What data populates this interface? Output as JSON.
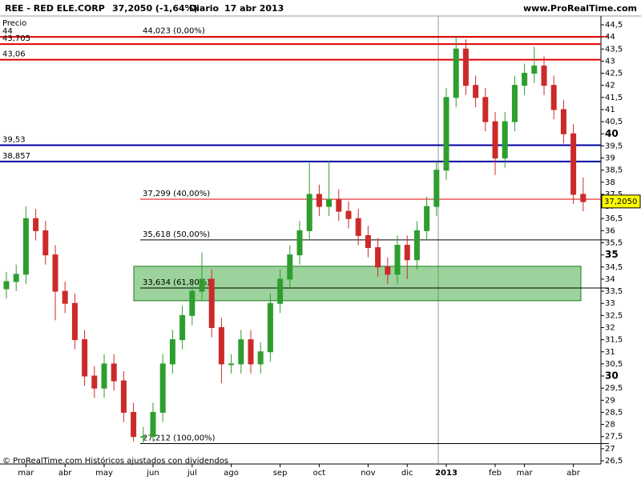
{
  "chart_data": {
    "type": "candlestick",
    "title": "REE - RED ELE.CORP",
    "last_quote": "37,2050 (-1,64%)",
    "period": "Diario",
    "date": "17 abr 2013",
    "site": "www.ProRealTime.com",
    "y_label": "Precio",
    "footer": "© ProRealTime.com Históricos ajustados con dividendos",
    "categories": [
      null,
      null,
      "mar",
      null,
      null,
      null,
      "abr",
      null,
      null,
      null,
      "may",
      null,
      null,
      null,
      null,
      "jun",
      null,
      null,
      null,
      "jul",
      null,
      null,
      null,
      "ago",
      null,
      null,
      null,
      null,
      "sep",
      null,
      null,
      null,
      "oct",
      null,
      null,
      null,
      null,
      "nov",
      null,
      null,
      null,
      "dic",
      null,
      null,
      null,
      "2013",
      null,
      null,
      null,
      null,
      "feb",
      null,
      null,
      "mar",
      null,
      null,
      null,
      null,
      "abr",
      null
    ],
    "open": [
      33.6,
      33.9,
      34.2,
      36.5,
      36.0,
      35.0,
      33.5,
      33.0,
      31.5,
      30.0,
      29.5,
      30.5,
      29.8,
      28.5,
      27.5,
      27.5,
      28.5,
      30.5,
      31.5,
      32.5,
      33.5,
      34.0,
      32.0,
      30.5,
      30.5,
      31.5,
      30.5,
      31.0,
      33.0,
      34.0,
      35.0,
      36.0,
      37.5,
      37.0,
      37.3,
      36.8,
      36.5,
      35.8,
      35.3,
      34.5,
      34.2,
      35.4,
      34.8,
      36.0,
      37.0,
      38.5,
      41.5,
      43.5,
      42.0,
      41.5,
      40.5,
      39.0,
      40.5,
      42.0,
      42.5,
      42.8,
      42.0,
      41.0,
      40.0,
      37.5
    ],
    "high": [
      34.3,
      34.6,
      37.0,
      36.9,
      36.4,
      35.4,
      33.9,
      33.4,
      31.9,
      30.4,
      30.9,
      30.9,
      30.2,
      28.9,
      27.9,
      28.9,
      30.9,
      31.9,
      32.9,
      33.9,
      35.1,
      34.4,
      32.4,
      30.9,
      31.9,
      31.9,
      31.4,
      33.4,
      34.4,
      35.4,
      36.4,
      38.8,
      37.9,
      38.9,
      37.7,
      37.2,
      36.9,
      36.2,
      35.7,
      34.9,
      35.8,
      35.8,
      36.4,
      37.4,
      38.9,
      41.9,
      44.0,
      43.9,
      42.4,
      41.9,
      40.9,
      40.9,
      42.4,
      42.9,
      43.6,
      43.2,
      42.4,
      41.4,
      40.4,
      38.2
    ],
    "low": [
      33.2,
      33.5,
      33.8,
      35.6,
      34.6,
      32.3,
      32.6,
      31.1,
      29.6,
      29.1,
      29.1,
      29.4,
      28.1,
      27.3,
      27.2,
      27.3,
      28.1,
      30.1,
      31.1,
      32.1,
      33.1,
      31.6,
      29.7,
      30.1,
      30.1,
      30.1,
      30.1,
      30.6,
      32.6,
      33.6,
      34.6,
      35.6,
      36.6,
      36.6,
      36.4,
      36.1,
      35.4,
      34.9,
      34.1,
      33.8,
      33.8,
      34.0,
      34.4,
      35.6,
      36.6,
      38.1,
      41.1,
      41.6,
      41.1,
      40.1,
      38.3,
      38.6,
      40.1,
      41.6,
      42.1,
      41.6,
      40.6,
      39.6,
      37.1,
      36.8
    ],
    "close": [
      33.9,
      34.2,
      36.5,
      36.0,
      35.0,
      33.5,
      33.0,
      31.5,
      30.0,
      29.5,
      30.5,
      29.8,
      28.5,
      27.5,
      27.5,
      28.5,
      30.5,
      31.5,
      32.5,
      33.5,
      34.0,
      32.0,
      30.5,
      30.5,
      31.5,
      30.5,
      31.0,
      33.0,
      34.0,
      35.0,
      36.0,
      37.5,
      37.0,
      37.3,
      36.8,
      36.5,
      35.8,
      35.3,
      34.5,
      34.2,
      35.4,
      34.8,
      36.0,
      37.0,
      38.5,
      41.5,
      43.5,
      42.0,
      41.5,
      40.5,
      39.0,
      40.5,
      42.0,
      42.5,
      42.8,
      42.0,
      41.0,
      40.0,
      37.5,
      37.2
    ],
    "up_color": "#2e9e2e",
    "down_color": "#cc2a2a",
    "ylim": [
      26.5,
      44.5
    ],
    "yticks": [
      {
        "value": 26.5,
        "label": "26,5"
      },
      27,
      {
        "value": 27.5,
        "label": "27,5"
      },
      28,
      {
        "value": 28.5,
        "label": "28,5"
      },
      29,
      {
        "value": 29.5,
        "label": "29,5"
      },
      30,
      {
        "value": 30.5,
        "label": "30,5"
      },
      31,
      {
        "value": 31.5,
        "label": "31,5"
      },
      32,
      {
        "value": 32.5,
        "label": "32,5"
      },
      33,
      {
        "value": 33.5,
        "label": "33,5"
      },
      34,
      {
        "value": 34.5,
        "label": "34,5"
      },
      35,
      {
        "value": 35.5,
        "label": "35,5"
      },
      36,
      {
        "value": 36.5,
        "label": "36,5"
      },
      37,
      {
        "value": 37.5,
        "label": "37,5"
      },
      38,
      {
        "value": 38.5,
        "label": "38,5"
      },
      39,
      {
        "value": 39.5,
        "label": "39,5"
      },
      40,
      {
        "value": 40.5,
        "label": "40,5"
      },
      41,
      {
        "value": 41.5,
        "label": "41,5"
      },
      42,
      {
        "value": 42.5,
        "label": "42,5"
      },
      43,
      {
        "value": 43.5,
        "label": "43,5"
      },
      44,
      {
        "value": 44.5,
        "label": "44,5"
      }
    ],
    "levels": [
      {
        "value": 44,
        "label": "44",
        "color": "#e00000"
      },
      {
        "value": 43.705,
        "label": "43,705",
        "color": "#e00000"
      },
      {
        "value": 43.06,
        "label": "43,06",
        "color": "#e00000"
      },
      {
        "value": 39.53,
        "label": "39,53",
        "color": "#0000a0"
      },
      {
        "value": 38.857,
        "label": "38,857",
        "color": "#0000a0"
      }
    ],
    "fibonacci": [
      {
        "value": 44.023,
        "label": "44,023 (0,00%)",
        "color": "#e00000"
      },
      {
        "value": 37.299,
        "label": "37,299 (40,00%)",
        "color": "#e00000"
      },
      {
        "value": 35.618,
        "label": "35,618 (50,00%)",
        "color": "#000000"
      },
      {
        "value": 33.634,
        "label": "33,634 (61,80%)",
        "color": "#000000"
      },
      {
        "value": 27.212,
        "label": "27,212 (100,00%)",
        "color": "#000000"
      }
    ],
    "zone": {
      "from": 33.11,
      "to": 34.53,
      "color": "#3aa83a"
    },
    "price": {
      "value": 37.205,
      "label": "37,2050"
    }
  }
}
